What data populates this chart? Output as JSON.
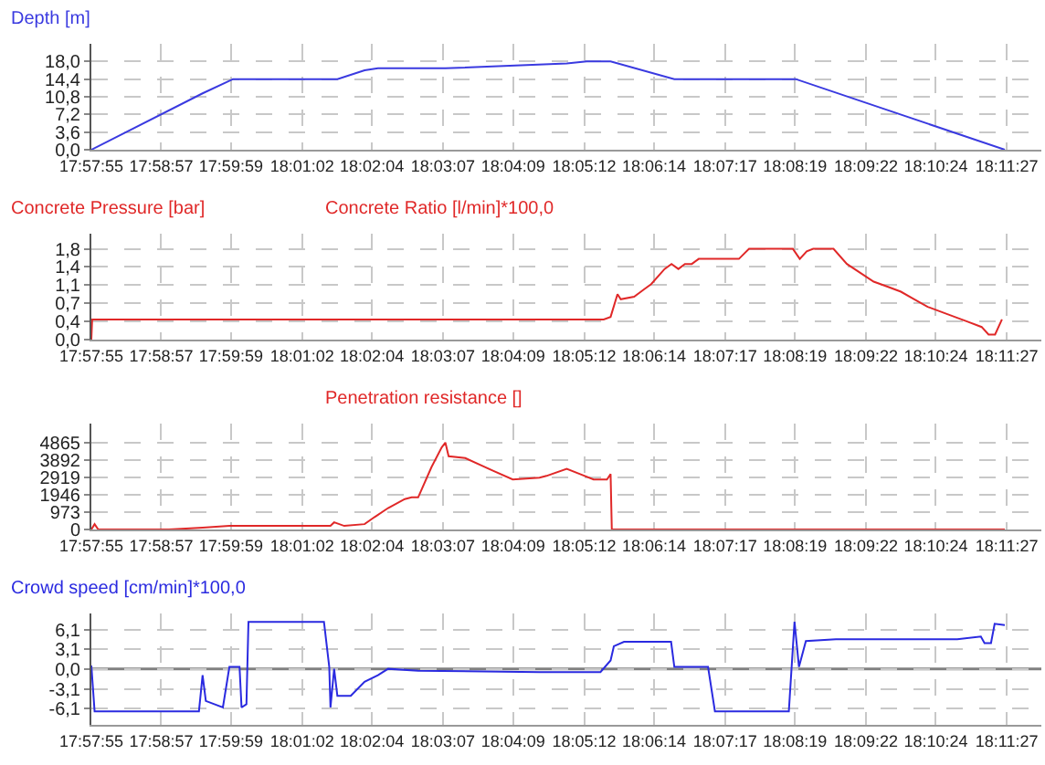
{
  "chart_data": [
    {
      "type": "line",
      "legend": "top left",
      "grid": true,
      "line_style": "solid",
      "xlim": [
        17.9653,
        18.1993
      ],
      "xticks": [
        {
          "value": 17.9653,
          "label": "17:57:55"
        },
        {
          "value": 17.9825,
          "label": "17:58:57"
        },
        {
          "value": 17.9997,
          "label": "17:59:59"
        },
        {
          "value": 18.0172,
          "label": "18:01:02"
        },
        {
          "value": 18.0344,
          "label": "18:02:04"
        },
        {
          "value": 18.0519,
          "label": "18:03:07"
        },
        {
          "value": 18.0692,
          "label": "18:04:09"
        },
        {
          "value": 18.0867,
          "label": "18:05:12"
        },
        {
          "value": 18.1039,
          "label": "18:06:14"
        },
        {
          "value": 18.1214,
          "label": "18:07:17"
        },
        {
          "value": 18.1386,
          "label": "18:08:19"
        },
        {
          "value": 18.1561,
          "label": "18:09:22"
        },
        {
          "value": 18.1733,
          "label": "18:10:24"
        },
        {
          "value": 18.1908,
          "label": "18:11:27"
        }
      ],
      "ylim": [
        0,
        21.6
      ],
      "yticks": [
        {
          "value": 0,
          "label": "0,0"
        },
        {
          "value": 3.6,
          "label": "3,6"
        },
        {
          "value": 7.2,
          "label": "7,2"
        },
        {
          "value": 10.8,
          "label": "10,8"
        },
        {
          "value": 14.4,
          "label": "14,4"
        },
        {
          "value": 18,
          "label": "18,0"
        }
      ],
      "series": [
        {
          "name": "Depth [m]",
          "color": "#3a3ae0",
          "x": [
            17.9653,
            17.9927,
            18.0002,
            18.0259,
            18.0326,
            18.0359,
            18.0525,
            18.0824,
            18.0873,
            18.0932,
            18.1089,
            18.1388,
            18.1903
          ],
          "values": [
            0,
            11.5,
            14.4,
            14.4,
            16.2,
            16.6,
            16.6,
            17.6,
            18,
            18,
            14.4,
            14.4,
            0
          ]
        }
      ]
    },
    {
      "type": "line",
      "title": "Concrete Pressure [bar]",
      "legend": "top",
      "grid": true,
      "line_style": "solid",
      "xlim": [
        17.9653,
        18.1993
      ],
      "xticks": [
        {
          "value": 17.9653,
          "label": "17:57:55"
        },
        {
          "value": 17.9825,
          "label": "17:58:57"
        },
        {
          "value": 17.9997,
          "label": "17:59:59"
        },
        {
          "value": 18.0172,
          "label": "18:01:02"
        },
        {
          "value": 18.0344,
          "label": "18:02:04"
        },
        {
          "value": 18.0519,
          "label": "18:03:07"
        },
        {
          "value": 18.0692,
          "label": "18:04:09"
        },
        {
          "value": 18.0867,
          "label": "18:05:12"
        },
        {
          "value": 18.1039,
          "label": "18:06:14"
        },
        {
          "value": 18.1214,
          "label": "18:07:17"
        },
        {
          "value": 18.1386,
          "label": "18:08:19"
        },
        {
          "value": 18.1561,
          "label": "18:09:22"
        },
        {
          "value": 18.1733,
          "label": "18:10:24"
        },
        {
          "value": 18.1908,
          "label": "18:11:27"
        }
      ],
      "ylim": [
        0,
        2.1
      ],
      "yticks": [
        {
          "value": 0,
          "label": "0,0"
        },
        {
          "value": 0.36,
          "label": "0,4"
        },
        {
          "value": 0.72,
          "label": "0,7"
        },
        {
          "value": 1.08,
          "label": "1,1"
        },
        {
          "value": 1.44,
          "label": "1,4"
        },
        {
          "value": 1.8,
          "label": "1,8"
        }
      ],
      "series": [
        {
          "name": "Concrete Ratio [l/min]*100,0",
          "color": "#e02828",
          "x": [
            17.9653,
            17.9655,
            18.0915,
            18.0932,
            18.0949,
            18.0957,
            18.099,
            18.1015,
            18.1032,
            18.1065,
            18.1082,
            18.1099,
            18.1115,
            18.1132,
            18.1149,
            18.1248,
            18.1273,
            18.1381,
            18.1398,
            18.1415,
            18.1431,
            18.1481,
            18.1514,
            18.158,
            18.1614,
            18.1647,
            18.168,
            18.1713,
            18.1763,
            18.1813,
            18.1846,
            18.1863,
            18.1879,
            18.1896
          ],
          "values": [
            0,
            0.4,
            0.4,
            0.45,
            0.9,
            0.8,
            0.85,
            1,
            1.1,
            1.4,
            1.5,
            1.4,
            1.5,
            1.5,
            1.6,
            1.6,
            1.8,
            1.8,
            1.6,
            1.75,
            1.8,
            1.8,
            1.5,
            1.15,
            1.05,
            0.95,
            0.8,
            0.65,
            0.5,
            0.35,
            0.25,
            0.1,
            0.1,
            0.4
          ]
        }
      ]
    },
    {
      "type": "line",
      "legend": "top",
      "grid": true,
      "line_style": "solid",
      "xlim": [
        17.9653,
        18.1993
      ],
      "xticks": [
        {
          "value": 17.9653,
          "label": "17:57:55"
        },
        {
          "value": 17.9825,
          "label": "17:58:57"
        },
        {
          "value": 17.9997,
          "label": "17:59:59"
        },
        {
          "value": 18.0172,
          "label": "18:01:02"
        },
        {
          "value": 18.0344,
          "label": "18:02:04"
        },
        {
          "value": 18.0519,
          "label": "18:03:07"
        },
        {
          "value": 18.0692,
          "label": "18:04:09"
        },
        {
          "value": 18.0867,
          "label": "18:05:12"
        },
        {
          "value": 18.1039,
          "label": "18:06:14"
        },
        {
          "value": 18.1214,
          "label": "18:07:17"
        },
        {
          "value": 18.1386,
          "label": "18:08:19"
        },
        {
          "value": 18.1561,
          "label": "18:09:22"
        },
        {
          "value": 18.1733,
          "label": "18:10:24"
        },
        {
          "value": 18.1908,
          "label": "18:11:27"
        }
      ],
      "ylim": [
        0,
        5930
      ],
      "yticks": [
        0,
        973,
        1946,
        2919,
        3892,
        4865
      ],
      "series": [
        {
          "name": "Penetration resistance []",
          "color": "#e02828",
          "x": [
            17.9653,
            17.9661,
            17.967,
            17.9844,
            17.9927,
            17.9993,
            18.0242,
            18.0251,
            18.0276,
            18.0326,
            18.0351,
            18.0384,
            18.0425,
            18.0442,
            18.0458,
            18.0491,
            18.0516,
            18.0525,
            18.0533,
            18.0574,
            18.0641,
            18.0691,
            18.0757,
            18.0774,
            18.0824,
            18.0857,
            18.089,
            18.0923,
            18.0932,
            18.0935,
            18.1903
          ],
          "values": [
            0,
            300,
            0,
            0,
            100,
            200,
            200,
            400,
            200,
            300,
            700,
            1200,
            1700,
            1800,
            1800,
            3500,
            4600,
            4865,
            4100,
            4000,
            3300,
            2800,
            2900,
            3000,
            3400,
            3100,
            2800,
            2800,
            3100,
            0,
            0
          ]
        }
      ]
    },
    {
      "type": "line",
      "legend": "top left",
      "grid": true,
      "line_style": "solid",
      "xlim": [
        17.9653,
        18.1993
      ],
      "xticks": [
        {
          "value": 17.9653,
          "label": "17:57:55"
        },
        {
          "value": 17.9825,
          "label": "17:58:57"
        },
        {
          "value": 17.9997,
          "label": "17:59:59"
        },
        {
          "value": 18.0172,
          "label": "18:01:02"
        },
        {
          "value": 18.0344,
          "label": "18:02:04"
        },
        {
          "value": 18.0519,
          "label": "18:03:07"
        },
        {
          "value": 18.0692,
          "label": "18:04:09"
        },
        {
          "value": 18.0867,
          "label": "18:05:12"
        },
        {
          "value": 18.1039,
          "label": "18:06:14"
        },
        {
          "value": 18.1214,
          "label": "18:07:17"
        },
        {
          "value": 18.1386,
          "label": "18:08:19"
        },
        {
          "value": 18.1561,
          "label": "18:09:22"
        },
        {
          "value": 18.1733,
          "label": "18:10:24"
        },
        {
          "value": 18.1908,
          "label": "18:11:27"
        }
      ],
      "ylim": [
        -8.7,
        8.6
      ],
      "yticks": [
        {
          "value": -6.1,
          "label": "-6,1"
        },
        {
          "value": -3.1,
          "label": "-3,1"
        },
        {
          "value": 0,
          "label": "0,0"
        },
        {
          "value": 3.1,
          "label": "3,1"
        },
        {
          "value": 6.1,
          "label": "6,1"
        }
      ],
      "ref_lines": [
        {
          "axis": "y",
          "value": 0,
          "color": "#808080"
        }
      ],
      "series": [
        {
          "name": "Crowd speed [cm/min]*100,0",
          "color": "#2a2ae0",
          "x": [
            17.9653,
            17.9661,
            17.9918,
            17.9927,
            17.9935,
            17.9977,
            17.9993,
            18.0018,
            18.0023,
            18.0035,
            18.004,
            18.0226,
            18.0239,
            18.0242,
            18.0251,
            18.0259,
            18.0292,
            18.0326,
            18.0359,
            18.0384,
            18.0458,
            18.0757,
            18.0907,
            18.0932,
            18.094,
            18.0965,
            18.1081,
            18.1089,
            18.1172,
            18.1189,
            18.1371,
            18.1385,
            18.1396,
            18.1413,
            18.1487,
            18.1786,
            18.1844,
            18.1853,
            18.1869,
            18.1878,
            18.1903
          ],
          "values": [
            0.5,
            -6.6,
            -6.6,
            -1,
            -5,
            -6,
            0.3,
            0.3,
            -6,
            -5.5,
            7.3,
            7.3,
            0.3,
            -6,
            0,
            -4.2,
            -4.2,
            -2,
            -1,
            0,
            -0.3,
            -0.5,
            -0.5,
            1.3,
            3.5,
            4.2,
            4.2,
            0.3,
            0.3,
            -6.6,
            -6.6,
            7.3,
            0.3,
            4.3,
            4.6,
            4.6,
            5,
            4,
            4,
            7,
            6.8
          ]
        }
      ]
    }
  ]
}
